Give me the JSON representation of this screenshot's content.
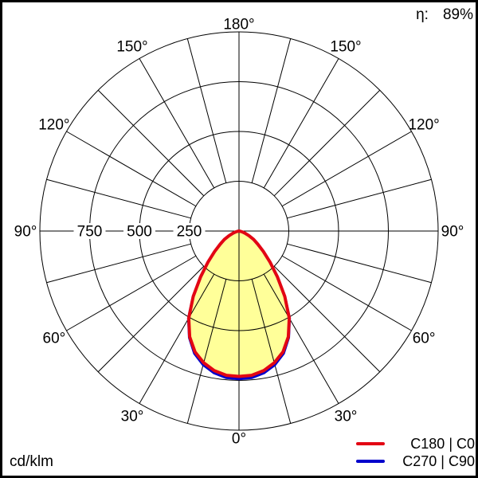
{
  "header": {
    "efficiency_symbol": "η:",
    "efficiency_value": "89%"
  },
  "footer": {
    "unit": "cd/klm"
  },
  "legend": {
    "position": "bottom-right",
    "items": [
      {
        "label": "C180 | C0",
        "color": "#e30613",
        "style": "solid"
      },
      {
        "label": "C270 | C90",
        "color": "#0000cc",
        "style": "solid"
      }
    ]
  },
  "chart_data": {
    "type": "line",
    "variant": "polar-photometric-luminous-intensity",
    "units": "cd/klm",
    "efficiency": "89%",
    "grid_angle_step_deg": 15,
    "angle_label_step_deg": 30,
    "angle_labels": [
      "0°",
      "30°",
      "60°",
      "90°",
      "120°",
      "150°",
      "180°"
    ],
    "radial_rings": [
      250,
      500,
      750,
      1000
    ],
    "radial_ring_labels": [
      "250",
      "500",
      "750"
    ],
    "radial_max": 1000,
    "fill_color": "#ffff99",
    "grid_color": "#000000",
    "gamma_deg": [
      0,
      5,
      10,
      15,
      20,
      25,
      30,
      35,
      40,
      45,
      50,
      55,
      60,
      65,
      70,
      75,
      80,
      85,
      90
    ],
    "series": [
      {
        "name": "C180 | C0",
        "color": "#e30613",
        "values": [
          730,
          727,
          712,
          685,
          646,
          586,
          505,
          400,
          300,
          220,
          160,
          115,
          85,
          55,
          32,
          16,
          6,
          2,
          0
        ]
      },
      {
        "name": "C270 | C90",
        "color": "#0000cc",
        "values": [
          742,
          739,
          723,
          695,
          654,
          590,
          507,
          401,
          299,
          219,
          159,
          114,
          84,
          54,
          31,
          15,
          6,
          2,
          0
        ]
      }
    ]
  }
}
